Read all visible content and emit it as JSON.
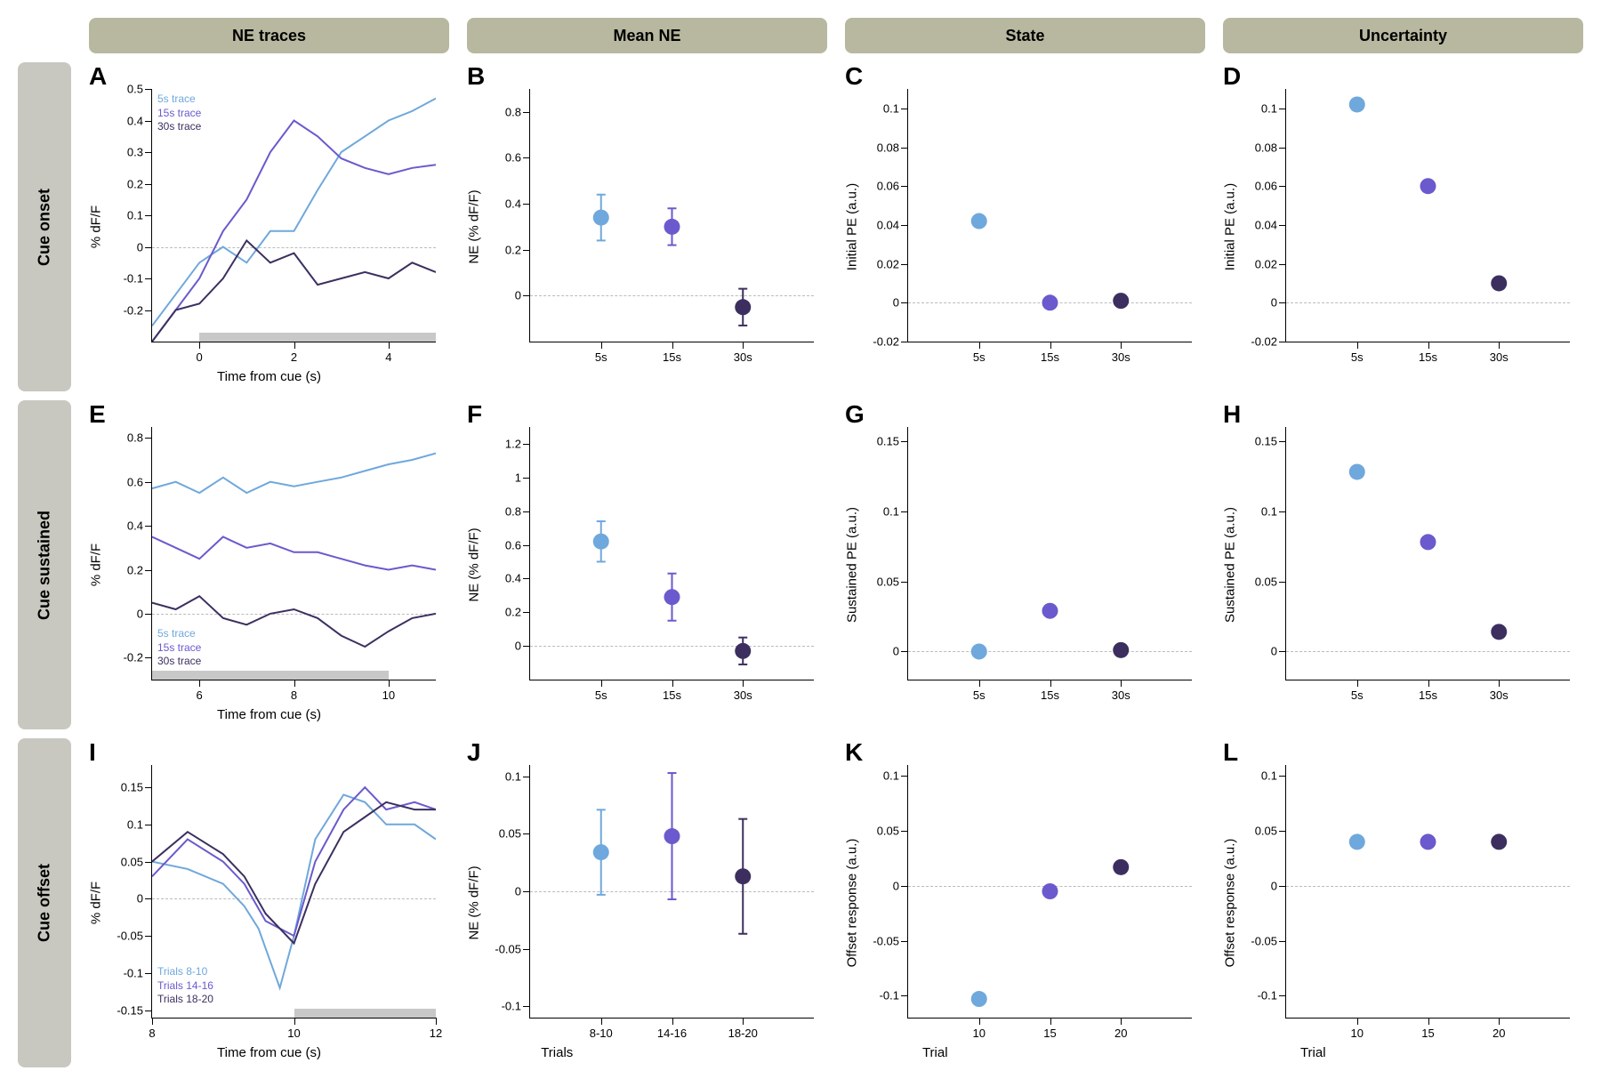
{
  "colors": {
    "c5s": "#6fa8dc",
    "c15s": "#6a5acd",
    "c30s": "#3c2f5f",
    "header_bg": "#b8b8a0",
    "row_bg": "#c8c8c0",
    "dash": "#bbbbbb",
    "gray_bar": "#c8c8c8"
  },
  "col_headers": [
    "NE traces",
    "Mean NE",
    "State",
    "Uncertainty"
  ],
  "row_headers": [
    "Cue onset",
    "Cue sustained",
    "Cue offset"
  ],
  "panels": {
    "A": {
      "letter": "A",
      "type": "line",
      "ylabel": "% dF/F",
      "xlabel": "Time from cue (s)",
      "xlim": [
        -1,
        5
      ],
      "ylim": [
        -0.3,
        0.5
      ],
      "yticks": [
        -0.2,
        -0.1,
        0,
        0.1,
        0.2,
        0.3,
        0.4,
        0.5
      ],
      "xticks": [
        0,
        2,
        4
      ],
      "zero_at": 0,
      "gray_bar": [
        0,
        5
      ],
      "legend": {
        "pos": "top-left",
        "items": [
          "5s trace",
          "15s trace",
          "30s trace"
        ],
        "colors": [
          "c5s",
          "c15s",
          "c30s"
        ]
      },
      "series": [
        {
          "color": "c5s",
          "pts": [
            [
              -1,
              -0.25
            ],
            [
              -0.5,
              -0.15
            ],
            [
              0,
              -0.05
            ],
            [
              0.5,
              0
            ],
            [
              1,
              -0.05
            ],
            [
              1.5,
              0.05
            ],
            [
              2,
              0.05
            ],
            [
              2.5,
              0.18
            ],
            [
              3,
              0.3
            ],
            [
              3.5,
              0.35
            ],
            [
              4,
              0.4
            ],
            [
              4.5,
              0.43
            ],
            [
              5,
              0.47
            ]
          ]
        },
        {
          "color": "c15s",
          "pts": [
            [
              -1,
              -0.3
            ],
            [
              -0.5,
              -0.2
            ],
            [
              0,
              -0.1
            ],
            [
              0.5,
              0.05
            ],
            [
              1,
              0.15
            ],
            [
              1.5,
              0.3
            ],
            [
              2,
              0.4
            ],
            [
              2.5,
              0.35
            ],
            [
              3,
              0.28
            ],
            [
              3.5,
              0.25
            ],
            [
              4,
              0.23
            ],
            [
              4.5,
              0.25
            ],
            [
              5,
              0.26
            ]
          ]
        },
        {
          "color": "c30s",
          "pts": [
            [
              -1,
              -0.3
            ],
            [
              -0.5,
              -0.2
            ],
            [
              0,
              -0.18
            ],
            [
              0.5,
              -0.1
            ],
            [
              1,
              0.02
            ],
            [
              1.5,
              -0.05
            ],
            [
              2,
              -0.02
            ],
            [
              2.5,
              -0.12
            ],
            [
              3,
              -0.1
            ],
            [
              3.5,
              -0.08
            ],
            [
              4,
              -0.1
            ],
            [
              4.5,
              -0.05
            ],
            [
              5,
              -0.08
            ]
          ]
        }
      ]
    },
    "B": {
      "letter": "B",
      "type": "scatter",
      "ylabel": "NE (% dF/F)",
      "xlabel": "",
      "xlim": [
        0,
        4
      ],
      "ylim": [
        -0.2,
        0.9
      ],
      "yticks": [
        0,
        0.2,
        0.4,
        0.6,
        0.8
      ],
      "xticks_pos": [
        1,
        2,
        3
      ],
      "xticks_lbl": [
        "5s",
        "15s",
        "30s"
      ],
      "zero_at": 0,
      "points": [
        {
          "x": 1,
          "y": 0.34,
          "err": 0.1,
          "color": "c5s"
        },
        {
          "x": 2,
          "y": 0.3,
          "err": 0.08,
          "color": "c15s"
        },
        {
          "x": 3,
          "y": -0.05,
          "err": 0.08,
          "color": "c30s"
        }
      ]
    },
    "C": {
      "letter": "C",
      "type": "scatter",
      "ylabel": "Initial PE (a.u.)",
      "xlabel": "",
      "xlim": [
        0,
        4
      ],
      "ylim": [
        -0.02,
        0.11
      ],
      "yticks": [
        -0.02,
        0,
        0.02,
        0.04,
        0.06,
        0.08,
        0.1
      ],
      "xticks_pos": [
        1,
        2,
        3
      ],
      "xticks_lbl": [
        "5s",
        "15s",
        "30s"
      ],
      "zero_at": 0,
      "points": [
        {
          "x": 1,
          "y": 0.042,
          "color": "c5s"
        },
        {
          "x": 2,
          "y": 0.0,
          "color": "c15s"
        },
        {
          "x": 3,
          "y": 0.001,
          "color": "c30s"
        }
      ]
    },
    "D": {
      "letter": "D",
      "type": "scatter",
      "ylabel": "Initial PE (a.u.)",
      "xlabel": "",
      "xlim": [
        0,
        4
      ],
      "ylim": [
        -0.02,
        0.11
      ],
      "yticks": [
        -0.02,
        0,
        0.02,
        0.04,
        0.06,
        0.08,
        0.1
      ],
      "xticks_pos": [
        1,
        2,
        3
      ],
      "xticks_lbl": [
        "5s",
        "15s",
        "30s"
      ],
      "zero_at": 0,
      "points": [
        {
          "x": 1,
          "y": 0.102,
          "color": "c5s"
        },
        {
          "x": 2,
          "y": 0.06,
          "color": "c15s"
        },
        {
          "x": 3,
          "y": 0.01,
          "color": "c30s"
        }
      ]
    },
    "E": {
      "letter": "E",
      "type": "line",
      "ylabel": "% dF/F",
      "xlabel": "Time from cue (s)",
      "xlim": [
        5,
        11
      ],
      "ylim": [
        -0.3,
        0.85
      ],
      "yticks": [
        -0.2,
        0,
        0.2,
        0.4,
        0.6,
        0.8
      ],
      "xticks": [
        6,
        8,
        10
      ],
      "zero_at": 0,
      "gray_bar": [
        5,
        10
      ],
      "legend": {
        "pos": "bottom-left",
        "items": [
          "5s trace",
          "15s trace",
          "30s trace"
        ],
        "colors": [
          "c5s",
          "c15s",
          "c30s"
        ]
      },
      "series": [
        {
          "color": "c5s",
          "pts": [
            [
              5,
              0.57
            ],
            [
              5.5,
              0.6
            ],
            [
              6,
              0.55
            ],
            [
              6.5,
              0.62
            ],
            [
              7,
              0.55
            ],
            [
              7.5,
              0.6
            ],
            [
              8,
              0.58
            ],
            [
              8.5,
              0.6
            ],
            [
              9,
              0.62
            ],
            [
              9.5,
              0.65
            ],
            [
              10,
              0.68
            ],
            [
              10.5,
              0.7
            ],
            [
              11,
              0.73
            ]
          ]
        },
        {
          "color": "c15s",
          "pts": [
            [
              5,
              0.35
            ],
            [
              5.5,
              0.3
            ],
            [
              6,
              0.25
            ],
            [
              6.5,
              0.35
            ],
            [
              7,
              0.3
            ],
            [
              7.5,
              0.32
            ],
            [
              8,
              0.28
            ],
            [
              8.5,
              0.28
            ],
            [
              9,
              0.25
            ],
            [
              9.5,
              0.22
            ],
            [
              10,
              0.2
            ],
            [
              10.5,
              0.22
            ],
            [
              11,
              0.2
            ]
          ]
        },
        {
          "color": "c30s",
          "pts": [
            [
              5,
              0.05
            ],
            [
              5.5,
              0.02
            ],
            [
              6,
              0.08
            ],
            [
              6.5,
              -0.02
            ],
            [
              7,
              -0.05
            ],
            [
              7.5,
              0
            ],
            [
              8,
              0.02
            ],
            [
              8.5,
              -0.02
            ],
            [
              9,
              -0.1
            ],
            [
              9.5,
              -0.15
            ],
            [
              10,
              -0.08
            ],
            [
              10.5,
              -0.02
            ],
            [
              11,
              0
            ]
          ]
        }
      ]
    },
    "F": {
      "letter": "F",
      "type": "scatter",
      "ylabel": "NE (% dF/F)",
      "xlabel": "",
      "xlim": [
        0,
        4
      ],
      "ylim": [
        -0.2,
        1.3
      ],
      "yticks": [
        0,
        0.2,
        0.4,
        0.6,
        0.8,
        1.0,
        1.2
      ],
      "xticks_pos": [
        1,
        2,
        3
      ],
      "xticks_lbl": [
        "5s",
        "15s",
        "30s"
      ],
      "zero_at": 0,
      "points": [
        {
          "x": 1,
          "y": 0.62,
          "err": 0.12,
          "color": "c5s"
        },
        {
          "x": 2,
          "y": 0.29,
          "err": 0.14,
          "color": "c15s"
        },
        {
          "x": 3,
          "y": -0.03,
          "err": 0.08,
          "color": "c30s"
        }
      ]
    },
    "G": {
      "letter": "G",
      "type": "scatter",
      "ylabel": "Sustained PE (a.u.)",
      "xlabel": "",
      "xlim": [
        0,
        4
      ],
      "ylim": [
        -0.02,
        0.16
      ],
      "yticks": [
        0,
        0.05,
        0.1,
        0.15
      ],
      "xticks_pos": [
        1,
        2,
        3
      ],
      "xticks_lbl": [
        "5s",
        "15s",
        "30s"
      ],
      "zero_at": 0,
      "points": [
        {
          "x": 1,
          "y": 0.0,
          "color": "c5s"
        },
        {
          "x": 2,
          "y": 0.029,
          "color": "c15s"
        },
        {
          "x": 3,
          "y": 0.001,
          "color": "c30s"
        }
      ]
    },
    "H": {
      "letter": "H",
      "type": "scatter",
      "ylabel": "Sustained PE (a.u.)",
      "xlabel": "",
      "xlim": [
        0,
        4
      ],
      "ylim": [
        -0.02,
        0.16
      ],
      "yticks": [
        0,
        0.05,
        0.1,
        0.15
      ],
      "xticks_pos": [
        1,
        2,
        3
      ],
      "xticks_lbl": [
        "5s",
        "15s",
        "30s"
      ],
      "zero_at": 0,
      "points": [
        {
          "x": 1,
          "y": 0.128,
          "color": "c5s"
        },
        {
          "x": 2,
          "y": 0.078,
          "color": "c15s"
        },
        {
          "x": 3,
          "y": 0.014,
          "color": "c30s"
        }
      ]
    },
    "I": {
      "letter": "I",
      "type": "line",
      "ylabel": "% dF/F",
      "xlabel": "Time from cue (s)",
      "xlim": [
        8,
        12
      ],
      "ylim": [
        -0.16,
        0.18
      ],
      "yticks": [
        -0.15,
        -0.1,
        -0.05,
        0,
        0.05,
        0.1,
        0.15
      ],
      "xticks": [
        8,
        10,
        12
      ],
      "zero_at": 0,
      "gray_bar": [
        10,
        12
      ],
      "legend": {
        "pos": "bottom-left",
        "items": [
          "Trials 8-10",
          "Trials 14-16",
          "Trials 18-20"
        ],
        "colors": [
          "c5s",
          "c15s",
          "c30s"
        ]
      },
      "series": [
        {
          "color": "c5s",
          "pts": [
            [
              8,
              0.05
            ],
            [
              8.5,
              0.04
            ],
            [
              9,
              0.02
            ],
            [
              9.3,
              -0.01
            ],
            [
              9.5,
              -0.04
            ],
            [
              9.8,
              -0.12
            ],
            [
              10,
              -0.05
            ],
            [
              10.3,
              0.08
            ],
            [
              10.7,
              0.14
            ],
            [
              11,
              0.13
            ],
            [
              11.3,
              0.1
            ],
            [
              11.7,
              0.1
            ],
            [
              12,
              0.08
            ]
          ]
        },
        {
          "color": "c15s",
          "pts": [
            [
              8,
              0.03
            ],
            [
              8.5,
              0.08
            ],
            [
              9,
              0.05
            ],
            [
              9.3,
              0.02
            ],
            [
              9.6,
              -0.03
            ],
            [
              10,
              -0.05
            ],
            [
              10.3,
              0.05
            ],
            [
              10.7,
              0.12
            ],
            [
              11,
              0.15
            ],
            [
              11.3,
              0.12
            ],
            [
              11.7,
              0.13
            ],
            [
              12,
              0.12
            ]
          ]
        },
        {
          "color": "c30s",
          "pts": [
            [
              8,
              0.05
            ],
            [
              8.5,
              0.09
            ],
            [
              9,
              0.06
            ],
            [
              9.3,
              0.03
            ],
            [
              9.6,
              -0.02
            ],
            [
              10,
              -0.06
            ],
            [
              10.3,
              0.02
            ],
            [
              10.7,
              0.09
            ],
            [
              11,
              0.11
            ],
            [
              11.3,
              0.13
            ],
            [
              11.7,
              0.12
            ],
            [
              12,
              0.12
            ]
          ]
        }
      ]
    },
    "J": {
      "letter": "J",
      "type": "scatter",
      "ylabel": "NE (% dF/F)",
      "xlabel": "Trials",
      "xlim": [
        0,
        4
      ],
      "ylim": [
        -0.11,
        0.11
      ],
      "yticks": [
        -0.1,
        -0.05,
        0,
        0.05,
        0.1
      ],
      "xticks_pos": [
        1,
        2,
        3
      ],
      "xticks_lbl": [
        "8-10",
        "14-16",
        "18-20"
      ],
      "zero_at": 0,
      "xlabel_offset": true,
      "points": [
        {
          "x": 1,
          "y": 0.034,
          "err": 0.037,
          "color": "c5s"
        },
        {
          "x": 2,
          "y": 0.048,
          "err": 0.055,
          "color": "c15s"
        },
        {
          "x": 3,
          "y": 0.013,
          "err": 0.05,
          "color": "c30s"
        }
      ]
    },
    "K": {
      "letter": "K",
      "type": "scatter",
      "ylabel": "Offset response (a.u.)",
      "xlabel": "Trial",
      "xlim": [
        0,
        4
      ],
      "ylim": [
        -0.12,
        0.11
      ],
      "yticks": [
        -0.1,
        -0.05,
        0,
        0.05,
        0.1
      ],
      "xticks_pos": [
        1,
        2,
        3
      ],
      "xticks_lbl": [
        "10",
        "15",
        "20"
      ],
      "zero_at": 0,
      "xlabel_offset": true,
      "points": [
        {
          "x": 1,
          "y": -0.103,
          "color": "c5s"
        },
        {
          "x": 2,
          "y": -0.005,
          "color": "c15s"
        },
        {
          "x": 3,
          "y": 0.017,
          "color": "c30s"
        }
      ]
    },
    "L": {
      "letter": "L",
      "type": "scatter",
      "ylabel": "Offset response (a.u.)",
      "xlabel": "Trial",
      "xlim": [
        0,
        4
      ],
      "ylim": [
        -0.12,
        0.11
      ],
      "yticks": [
        -0.1,
        -0.05,
        0,
        0.05,
        0.1
      ],
      "xticks_pos": [
        1,
        2,
        3
      ],
      "xticks_lbl": [
        "10",
        "15",
        "20"
      ],
      "zero_at": 0,
      "xlabel_offset": true,
      "points": [
        {
          "x": 1,
          "y": 0.04,
          "color": "c5s"
        },
        {
          "x": 2,
          "y": 0.04,
          "color": "c15s"
        },
        {
          "x": 3,
          "y": 0.04,
          "color": "c30s"
        }
      ]
    }
  },
  "panel_order": [
    "A",
    "B",
    "C",
    "D",
    "E",
    "F",
    "G",
    "H",
    "I",
    "J",
    "K",
    "L"
  ]
}
